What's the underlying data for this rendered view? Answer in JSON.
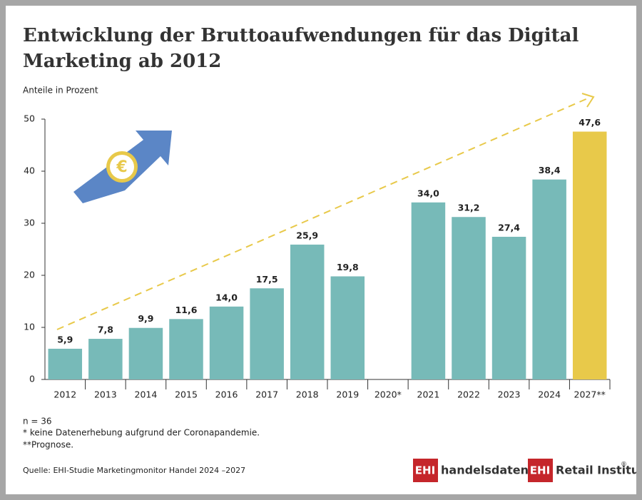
{
  "chart_data": {
    "type": "bar",
    "title": [
      "Entwicklung der Bruttoaufwendungen für das Digital",
      "Marketing ab 2012"
    ],
    "y_label": "Anteile in Prozent",
    "categories": [
      "2012",
      "2013",
      "2014",
      "2015",
      "2016",
      "2017",
      "2018",
      "2019",
      "2020*",
      "2021",
      "2022",
      "2023",
      "2024",
      "2027**"
    ],
    "values": [
      5.9,
      7.8,
      9.9,
      11.6,
      14.0,
      17.5,
      25.9,
      19.8,
      null,
      34.0,
      31.2,
      27.4,
      38.4,
      47.6
    ],
    "value_labels": [
      "5,9",
      "7,8",
      "9,9",
      "11,6",
      "14,0",
      "17,5",
      "25,9",
      "19,8",
      null,
      "34,0",
      "31,2",
      "27,4",
      "38,4",
      "47,6"
    ],
    "colors": [
      "#77bab8",
      "#77bab8",
      "#77bab8",
      "#77bab8",
      "#77bab8",
      "#77bab8",
      "#77bab8",
      "#77bab8",
      "#77bab8",
      "#77bab8",
      "#77bab8",
      "#77bab8",
      "#77bab8",
      "#e8c94a"
    ],
    "ylim": [
      0,
      50
    ],
    "yticks": [
      0,
      10,
      20,
      30,
      40,
      50
    ],
    "icon_text": "€",
    "notes": [
      "n = 36",
      "* keine Datenerhebung aufgrund der Coronapandemie.",
      "**Prognose."
    ],
    "source": "Quelle: EHI-Studie Marketingmonitor Handel 2024 –2027",
    "logos": [
      {
        "badge": "EHI",
        "text": "handelsdaten.de"
      },
      {
        "badge": "EHI",
        "text": "Retail Institute",
        "mark": "®"
      }
    ]
  }
}
